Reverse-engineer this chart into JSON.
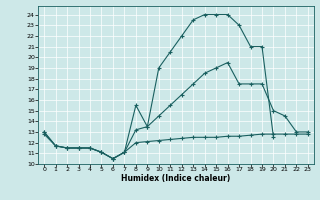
{
  "xlabel": "Humidex (Indice chaleur)",
  "bg_color": "#cde8e8",
  "line_color": "#1a6060",
  "grid_color": "#ffffff",
  "xlim": [
    -0.5,
    23.5
  ],
  "ylim": [
    10.0,
    24.8
  ],
  "xticks": [
    0,
    1,
    2,
    3,
    4,
    5,
    6,
    7,
    8,
    9,
    10,
    11,
    12,
    13,
    14,
    15,
    16,
    17,
    18,
    19,
    20,
    21,
    22,
    23
  ],
  "yticks": [
    10,
    11,
    12,
    13,
    14,
    15,
    16,
    17,
    18,
    19,
    20,
    21,
    22,
    23,
    24
  ],
  "line1_x": [
    0,
    1,
    2,
    3,
    4,
    5,
    6,
    7,
    8,
    9,
    10,
    11,
    12,
    13,
    14,
    15,
    16,
    17,
    18,
    19,
    20
  ],
  "line1_y": [
    13.0,
    11.7,
    11.5,
    11.5,
    11.5,
    11.1,
    10.5,
    11.1,
    15.5,
    13.5,
    19.0,
    20.5,
    22.0,
    23.5,
    24.0,
    24.0,
    24.0,
    23.0,
    21.0,
    21.0,
    12.5
  ],
  "line2_x": [
    0,
    1,
    2,
    3,
    4,
    5,
    6,
    7,
    8,
    9,
    10,
    11,
    12,
    13,
    14,
    15,
    16,
    17,
    18,
    19,
    20,
    21,
    22,
    23
  ],
  "line2_y": [
    13.0,
    11.7,
    11.5,
    11.5,
    11.5,
    11.1,
    10.5,
    11.1,
    13.2,
    13.5,
    14.5,
    15.5,
    16.5,
    17.5,
    18.5,
    19.0,
    19.5,
    17.5,
    17.5,
    17.5,
    15.0,
    14.5,
    13.0,
    13.0
  ],
  "line3_x": [
    0,
    1,
    2,
    3,
    4,
    5,
    6,
    7,
    8,
    9,
    10,
    11,
    12,
    13,
    14,
    15,
    16,
    17,
    18,
    19,
    20,
    21,
    22,
    23
  ],
  "line3_y": [
    12.8,
    11.7,
    11.5,
    11.5,
    11.5,
    11.1,
    10.5,
    11.1,
    12.0,
    12.1,
    12.2,
    12.3,
    12.4,
    12.5,
    12.5,
    12.5,
    12.6,
    12.6,
    12.7,
    12.8,
    12.8,
    12.8,
    12.8,
    12.8
  ]
}
